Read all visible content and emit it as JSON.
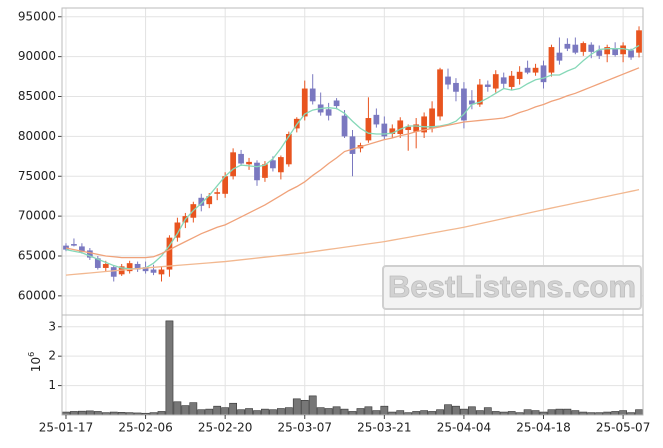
{
  "chart_data": [
    {
      "type": "candlestick",
      "up_color": "#e8541f",
      "down_color": "#7a78c0",
      "open": [
        66300,
        66500,
        66200,
        65700,
        64700,
        63500,
        63600,
        62700,
        63100,
        64000,
        63600,
        63300,
        62700,
        63300,
        67300,
        69200,
        69800,
        72300,
        71500,
        72800,
        72800,
        75000,
        77800,
        76500,
        76700,
        74800,
        77000,
        75500,
        76500,
        81000,
        82500,
        86000,
        84000,
        83400,
        84500,
        82600,
        80000,
        78500,
        79500,
        82700,
        81600,
        80300,
        80300,
        80800,
        80600,
        80500,
        81000,
        82500,
        87500,
        86700,
        86000,
        84500,
        84000,
        86500,
        86000,
        87400,
        86200,
        87200,
        88600,
        88000,
        88900,
        88000,
        90500,
        91600,
        91500,
        90600,
        91500,
        90800,
        90300,
        91000,
        90300,
        90800,
        90500
      ],
      "high": [
        66600,
        67200,
        66600,
        66000,
        65000,
        64400,
        63800,
        64000,
        64400,
        64300,
        64300,
        63900,
        63700,
        67600,
        69800,
        70400,
        71800,
        72800,
        72900,
        73500,
        75500,
        78500,
        78300,
        77300,
        77000,
        76900,
        77500,
        77600,
        80600,
        82400,
        87000,
        87800,
        85500,
        84200,
        84800,
        83300,
        80800,
        79200,
        84900,
        83500,
        82500,
        81500,
        82400,
        81500,
        82300,
        83000,
        84400,
        88600,
        88500,
        87300,
        86800,
        85800,
        87200,
        87000,
        88300,
        88000,
        88200,
        88800,
        89500,
        89100,
        89500,
        91500,
        92400,
        92300,
        92400,
        91900,
        91800,
        91400,
        91500,
        91800,
        91800,
        91000,
        93800
      ],
      "low": [
        65600,
        66200,
        65300,
        64500,
        63300,
        63100,
        61800,
        62500,
        62800,
        63000,
        62800,
        62600,
        61800,
        62400,
        66800,
        68500,
        69200,
        70600,
        71000,
        72000,
        72300,
        74600,
        76300,
        75800,
        73800,
        74300,
        75600,
        74600,
        76200,
        80500,
        82000,
        84000,
        82600,
        82000,
        83400,
        79800,
        75000,
        78000,
        79200,
        81100,
        79600,
        79800,
        79800,
        78200,
        78500,
        79800,
        80500,
        82000,
        85900,
        84400,
        81000,
        83400,
        83700,
        85600,
        85500,
        86000,
        85800,
        86500,
        87800,
        87600,
        86000,
        87500,
        89000,
        90700,
        90300,
        90100,
        89800,
        89700,
        89300,
        90000,
        89300,
        89600,
        89900
      ],
      "close": [
        65800,
        66300,
        65500,
        64800,
        63500,
        64000,
        62400,
        63700,
        64100,
        63300,
        63100,
        62900,
        63300,
        67300,
        69200,
        70000,
        71500,
        71300,
        72500,
        73000,
        75000,
        78000,
        76600,
        76800,
        74500,
        76500,
        76000,
        77400,
        80300,
        82200,
        86000,
        84400,
        83000,
        82600,
        83800,
        80000,
        77800,
        78900,
        82300,
        81500,
        80000,
        81000,
        82000,
        81200,
        81500,
        82500,
        83500,
        88400,
        86500,
        85600,
        82000,
        84000,
        86500,
        86200,
        87800,
        86600,
        87600,
        88100,
        88000,
        88600,
        86800,
        91200,
        89500,
        91000,
        90500,
        91700,
        90600,
        90100,
        91200,
        90200,
        91400,
        89900,
        93300
      ],
      "lines": [
        {
          "color": "#86d8b8",
          "values": [
            65800,
            65600,
            65400,
            65000,
            64600,
            64200,
            63800,
            63500,
            63400,
            63400,
            63500,
            64100,
            65000,
            66300,
            67800,
            69600,
            70700,
            71600,
            72600,
            73800,
            75000,
            75900,
            76400,
            76300,
            76200,
            76400,
            77200,
            78500,
            80000,
            81500,
            82800,
            83300,
            83500,
            83600,
            83500,
            82900,
            81900,
            81000,
            80400,
            80300,
            80300,
            80400,
            80900,
            81300,
            81300,
            81200,
            81200,
            81300,
            81500,
            81900,
            82800,
            84000,
            84300,
            84800,
            85400,
            86000,
            85800,
            86000,
            86600,
            87100,
            87300,
            87700,
            87700,
            88200,
            88600,
            89500,
            90300,
            90900,
            91000,
            91000,
            91000,
            90800,
            91400
          ]
        },
        {
          "color": "#f0a27a",
          "values": [
            66000,
            65800,
            65600,
            65400,
            65200,
            65000,
            64900,
            64800,
            64800,
            64800,
            64800,
            64900,
            65300,
            65800,
            66300,
            66800,
            67300,
            67800,
            68200,
            68600,
            68900,
            69400,
            69900,
            70400,
            70900,
            71400,
            72000,
            72600,
            73200,
            73700,
            74300,
            75100,
            75800,
            76600,
            77300,
            78100,
            78400,
            78700,
            79000,
            79300,
            79600,
            79800,
            80100,
            80300,
            80600,
            80800,
            81000,
            81200,
            81400,
            81600,
            81800,
            81900,
            82000,
            82100,
            82200,
            82300,
            82600,
            83000,
            83300,
            83700,
            84000,
            84400,
            84700,
            85100,
            85400,
            85800,
            86200,
            86600,
            87000,
            87400,
            87800,
            88200,
            88600
          ]
        },
        {
          "color": "#f2b890",
          "values": [
            62600,
            62690,
            62780,
            62870,
            62960,
            63050,
            63140,
            63230,
            63320,
            63410,
            63500,
            63580,
            63660,
            63740,
            63820,
            63900,
            63980,
            64060,
            64140,
            64220,
            64300,
            64410,
            64520,
            64630,
            64740,
            64850,
            64960,
            65070,
            65180,
            65290,
            65400,
            65540,
            65680,
            65820,
            65960,
            66100,
            66240,
            66380,
            66520,
            66660,
            66800,
            66980,
            67160,
            67340,
            67520,
            67700,
            67880,
            68060,
            68240,
            68420,
            68600,
            68820,
            69040,
            69260,
            69480,
            69700,
            69920,
            70140,
            70360,
            70580,
            70800,
            71010,
            71220,
            71430,
            71640,
            71850,
            72060,
            72270,
            72480,
            72690,
            72900,
            73110,
            73320
          ]
        }
      ],
      "ylim": [
        57600,
        96100
      ],
      "yticks": [
        60000,
        65000,
        70000,
        75000,
        80000,
        85000,
        90000,
        95000
      ],
      "grid": true,
      "watermark": "BestListens.com"
    },
    {
      "type": "bar",
      "color": "#777777",
      "y_label": {
        "base": "10",
        "exponent": "6"
      },
      "categories": [
        "25-01-17",
        null,
        null,
        null,
        null,
        null,
        null,
        null,
        null,
        null,
        "25-02-06",
        null,
        null,
        null,
        null,
        null,
        null,
        null,
        null,
        null,
        "25-02-20",
        null,
        null,
        null,
        null,
        null,
        null,
        null,
        null,
        null,
        "25-03-07",
        null,
        null,
        null,
        null,
        null,
        null,
        null,
        null,
        null,
        "25-03-21",
        null,
        null,
        null,
        null,
        null,
        null,
        null,
        null,
        null,
        "25-04-04",
        null,
        null,
        null,
        null,
        null,
        null,
        null,
        null,
        null,
        "25-04-18",
        null,
        null,
        null,
        null,
        null,
        null,
        null,
        null,
        null,
        "25-05-07",
        null,
        null
      ],
      "values": [
        0.1,
        0.12,
        0.13,
        0.14,
        0.12,
        0.08,
        0.1,
        0.09,
        0.08,
        0.07,
        0.06,
        0.08,
        0.12,
        3.2,
        0.45,
        0.32,
        0.42,
        0.18,
        0.2,
        0.3,
        0.25,
        0.4,
        0.18,
        0.22,
        0.15,
        0.2,
        0.18,
        0.22,
        0.25,
        0.55,
        0.5,
        0.65,
        0.25,
        0.22,
        0.28,
        0.2,
        0.12,
        0.22,
        0.28,
        0.15,
        0.3,
        0.1,
        0.15,
        0.08,
        0.12,
        0.15,
        0.12,
        0.18,
        0.35,
        0.3,
        0.2,
        0.28,
        0.15,
        0.25,
        0.12,
        0.1,
        0.12,
        0.08,
        0.18,
        0.15,
        0.1,
        0.18,
        0.2,
        0.2,
        0.15,
        0.1,
        0.08,
        0.08,
        0.1,
        0.12,
        0.15,
        0.08,
        0.18
      ],
      "ylim": [
        0,
        3.4
      ],
      "yticks": [
        1,
        2,
        3
      ],
      "grid": true
    }
  ]
}
